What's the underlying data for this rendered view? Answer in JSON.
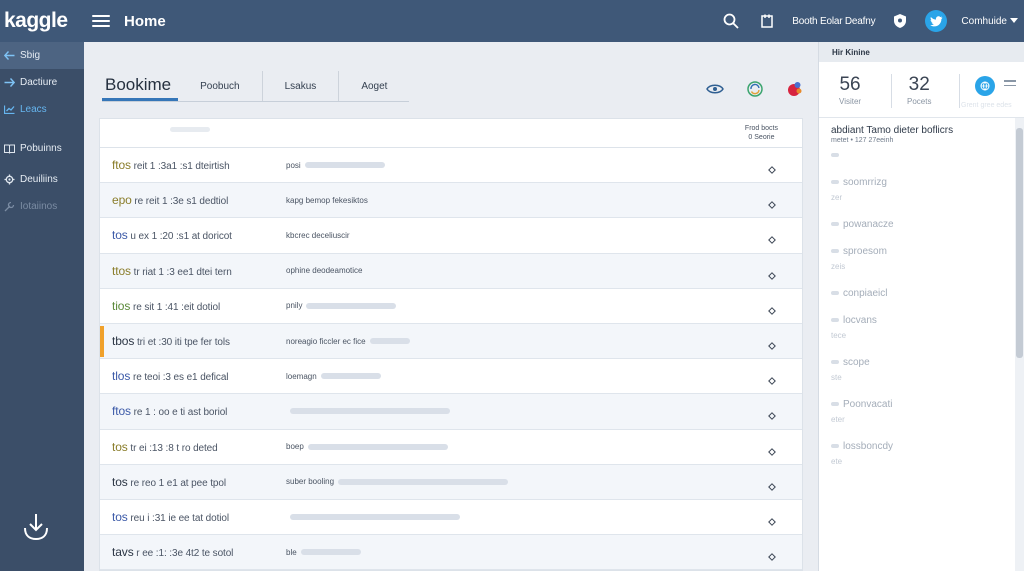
{
  "app": {
    "logo": "kaggle",
    "page_title": "Home"
  },
  "topbar": {
    "link": "Booth Eolar Deafny",
    "user": "Comhuide"
  },
  "sidebar": {
    "items": [
      {
        "label": "Sbig",
        "icon": "arrow-left-icon"
      },
      {
        "label": "Dactiure",
        "icon": "arrow-right-icon"
      },
      {
        "label": "Leacs",
        "icon": "chart-icon"
      },
      {
        "label": "Pobuinns",
        "icon": "book-icon"
      },
      {
        "label": "Deuiliins",
        "icon": "gear-icon"
      },
      {
        "label": "Iotaiinos",
        "icon": "tool-icon"
      }
    ]
  },
  "tabs": [
    {
      "label": "Bookime"
    },
    {
      "label": "Poobuch"
    },
    {
      "label": "Lsakus"
    },
    {
      "label": "Aoget"
    }
  ],
  "list": {
    "sort_label": "Frod bocts",
    "sort_value": "0 Seorie",
    "rows": [
      {
        "lead": "ftos",
        "title": "reit 1 :3a1 :s1 dteirtish",
        "desc": "posi"
      },
      {
        "lead": "epo",
        "title": "re reit 1 :3e s1 dedtiol",
        "desc": "kapg bemop fekesiktos"
      },
      {
        "lead": "tos",
        "title": "u ex 1 :20 :s1 at doricot",
        "desc": "kbcrec deceliuscir"
      },
      {
        "lead": "ttos",
        "title": "tr riat 1 :3 ee1 dtei tern",
        "desc": "ophine deodeamotice"
      },
      {
        "lead": "tios",
        "title": "re sit  1 :41 :eit dotiol",
        "desc": "pnily"
      },
      {
        "lead": "tbos",
        "title": "tri et :30 iti tpe fer tols",
        "desc": "noreagio ficcler ec fice"
      },
      {
        "lead": "tlos",
        "title": "re teoi :3 es e1 defical",
        "desc": "loemagn"
      },
      {
        "lead": "ftos",
        "title": "re 1 : oo e ti ast boriol",
        "desc": ""
      },
      {
        "lead": "tos",
        "title": "tr ei :13 :8 t ro deted",
        "desc": "boep"
      },
      {
        "lead": "tos",
        "title": "re reo 1 e1 at pee tpol",
        "desc": "suber booling"
      },
      {
        "lead": "tos",
        "title": "reu i :31 ie ee tat dotiol",
        "desc": ""
      },
      {
        "lead": "tavs",
        "title": "r ee :1: :3e 4t2 te sotol",
        "desc": "ble"
      }
    ]
  },
  "right_panel": {
    "header": "Hir Kinine",
    "stats": [
      {
        "value": "56",
        "label": "Visiter"
      },
      {
        "value": "32",
        "label": "Pocets"
      }
    ],
    "stat_ghost": "Grent gree edes",
    "title": "abdiant Tamo dieter boflicrs",
    "subtitle": "metet • 127 27eeinh",
    "items": [
      {
        "main": "",
        "sub": ""
      },
      {
        "main": "soomrrizg",
        "sub": "zer"
      },
      {
        "main": "powanacze",
        "sub": ""
      },
      {
        "main": "sproesom",
        "sub": "zeis"
      },
      {
        "main": "conpiaeicl",
        "sub": ""
      },
      {
        "main": "locvans",
        "sub": "tece"
      },
      {
        "main": "scope",
        "sub": "ste"
      },
      {
        "main": "Poonvacati",
        "sub": "eter"
      },
      {
        "main": "lossboncdy",
        "sub": "ete"
      }
    ]
  },
  "colors": {
    "topbar": "#3f5878",
    "sidebar": "#3b4e68",
    "accent": "#3576b8",
    "flag": "#f0a12b",
    "twitter": "#2aa4e8"
  }
}
